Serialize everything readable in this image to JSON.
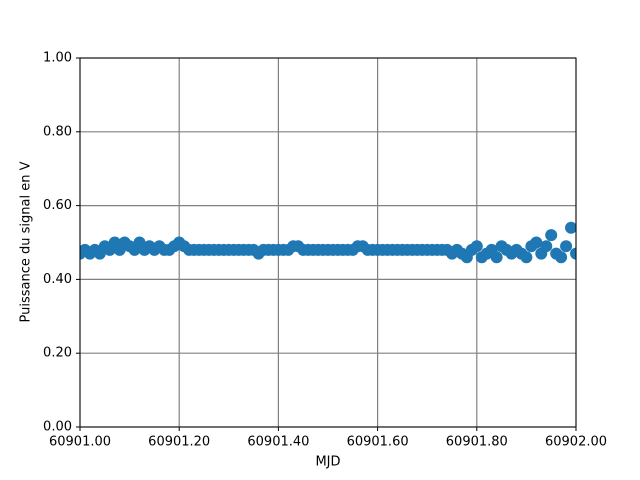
{
  "chart_data": {
    "type": "scatter",
    "x_label": "MJD",
    "y_label": "Puissance du signal en V",
    "xlim": [
      60901.0,
      60902.0
    ],
    "ylim": [
      0,
      1
    ],
    "xticks": [
      {
        "value": 60901.0,
        "label": "60901.00"
      },
      {
        "value": 60901.2,
        "label": "60901.20"
      },
      {
        "value": 60901.4,
        "label": "60901.40"
      },
      {
        "value": 60901.6,
        "label": "60901.60"
      },
      {
        "value": 60901.8,
        "label": "60901.80"
      },
      {
        "value": 60902.0,
        "label": "60902.00"
      }
    ],
    "yticks": [
      {
        "value": 0,
        "label": "0.00"
      },
      {
        "value": 0.2,
        "label": "0.20"
      },
      {
        "value": 0.4,
        "label": "0.40"
      },
      {
        "value": 0.6,
        "label": "0.60"
      },
      {
        "value": 0.8,
        "label": "0.80"
      },
      {
        "value": 1,
        "label": "1.00"
      }
    ],
    "grid": true,
    "color": "#1f77b4",
    "x": [
      60901.0,
      60901.01,
      60901.02,
      60901.03,
      60901.04,
      60901.05,
      60901.06,
      60901.07,
      60901.08,
      60901.09,
      60901.1,
      60901.11,
      60901.12,
      60901.13,
      60901.14,
      60901.15,
      60901.16,
      60901.17,
      60901.18,
      60901.19,
      60901.2,
      60901.21,
      60901.22,
      60901.23,
      60901.24,
      60901.25,
      60901.26,
      60901.27,
      60901.28,
      60901.29,
      60901.3,
      60901.31,
      60901.32,
      60901.33,
      60901.34,
      60901.35,
      60901.36,
      60901.37,
      60901.38,
      60901.39,
      60901.4,
      60901.41,
      60901.42,
      60901.43,
      60901.44,
      60901.45,
      60901.46,
      60901.47,
      60901.48,
      60901.49,
      60901.5,
      60901.51,
      60901.52,
      60901.53,
      60901.54,
      60901.55,
      60901.56,
      60901.57,
      60901.58,
      60901.59,
      60901.6,
      60901.61,
      60901.62,
      60901.63,
      60901.64,
      60901.65,
      60901.66,
      60901.67,
      60901.68,
      60901.69,
      60901.7,
      60901.71,
      60901.72,
      60901.73,
      60901.74,
      60901.75,
      60901.76,
      60901.77,
      60901.78,
      60901.79,
      60901.8,
      60901.81,
      60901.82,
      60901.83,
      60901.84,
      60901.85,
      60901.86,
      60901.87,
      60901.88,
      60901.89,
      60901.9,
      60901.91,
      60901.92,
      60901.93,
      60901.94,
      60901.95,
      60901.96,
      60901.97,
      60901.98,
      60901.99,
      60902.0
    ],
    "values": [
      0.47,
      0.48,
      0.47,
      0.48,
      0.47,
      0.49,
      0.48,
      0.5,
      0.48,
      0.5,
      0.49,
      0.48,
      0.5,
      0.48,
      0.49,
      0.48,
      0.49,
      0.48,
      0.48,
      0.49,
      0.5,
      0.49,
      0.48,
      0.48,
      0.48,
      0.48,
      0.48,
      0.48,
      0.48,
      0.48,
      0.48,
      0.48,
      0.48,
      0.48,
      0.48,
      0.48,
      0.47,
      0.48,
      0.48,
      0.48,
      0.48,
      0.48,
      0.48,
      0.49,
      0.49,
      0.48,
      0.48,
      0.48,
      0.48,
      0.48,
      0.48,
      0.48,
      0.48,
      0.48,
      0.48,
      0.48,
      0.49,
      0.49,
      0.48,
      0.48,
      0.48,
      0.48,
      0.48,
      0.48,
      0.48,
      0.48,
      0.48,
      0.48,
      0.48,
      0.48,
      0.48,
      0.48,
      0.48,
      0.48,
      0.48,
      0.47,
      0.48,
      0.47,
      0.46,
      0.48,
      0.49,
      0.46,
      0.47,
      0.48,
      0.46,
      0.49,
      0.48,
      0.47,
      0.48,
      0.47,
      0.46,
      0.49,
      0.5,
      0.47,
      0.49,
      0.52,
      0.47,
      0.46,
      0.49,
      0.54,
      0.47
    ]
  }
}
